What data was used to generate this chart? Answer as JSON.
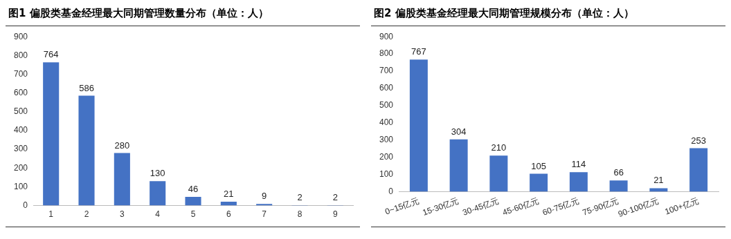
{
  "chart_data": [
    {
      "type": "bar",
      "title": "图1  偏股类基金经理最大同期管理数量分布（单位：人）",
      "categories": [
        "1",
        "2",
        "3",
        "4",
        "5",
        "6",
        "7",
        "8",
        "9"
      ],
      "values": [
        764,
        586,
        280,
        130,
        46,
        21,
        9,
        2,
        2
      ],
      "color": "#4472c4",
      "ylim": [
        0,
        900
      ],
      "yticks": [
        0,
        100,
        200,
        300,
        400,
        500,
        600,
        700,
        800,
        900
      ],
      "grid": false,
      "legend": false,
      "data_labels": true
    },
    {
      "type": "bar",
      "title": "图2  偏股类基金经理最大同期管理规模分布（单位：人）",
      "categories": [
        "0~15亿元",
        "15-30亿元",
        "30-45亿元",
        "45-60亿元",
        "60-75亿元",
        "75-90亿元",
        "90-100亿元",
        "100+亿元"
      ],
      "values": [
        767,
        304,
        210,
        105,
        114,
        66,
        21,
        253
      ],
      "color": "#4472c4",
      "ylim": [
        0,
        900
      ],
      "yticks": [
        0,
        100,
        200,
        300,
        400,
        500,
        600,
        700,
        800,
        900
      ],
      "grid": false,
      "legend": false,
      "data_labels": true
    }
  ]
}
